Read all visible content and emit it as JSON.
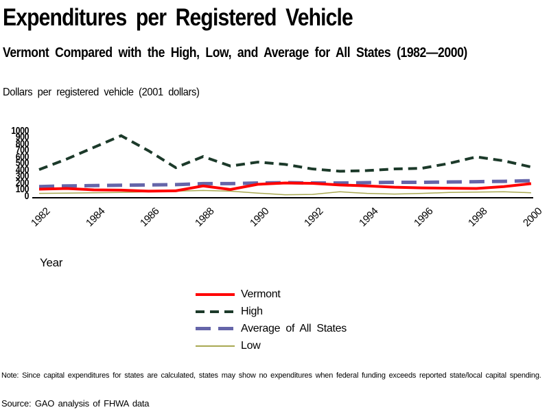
{
  "header": {
    "title": "Expenditures per Registered Vehicle",
    "subtitle": "Vermont Compared with the High, Low, and Average for All States (1982—2000)"
  },
  "footer": {
    "note": "Note: Since capital expenditures for states are calculated, states may show no expenditures when federal funding exceeds reported state/local capital spending.",
    "source": "Source: GAO analysis of FHWA data"
  },
  "colors": {
    "vermont": "#ff0000",
    "high": "#1c3a2a",
    "average": "#6565a9",
    "low": "#a8a851",
    "axis": "#000000"
  },
  "chart_data": {
    "type": "line",
    "title": "Expenditures per Registered Vehicle",
    "xlabel": "Year",
    "ylabel_caption": "Dollars per registered vehicle (2001 dollars)",
    "ylim": [
      0,
      1000
    ],
    "grid": false,
    "legend_position": "bottom-center",
    "x": [
      1982,
      1983,
      1984,
      1985,
      1986,
      1987,
      1988,
      1989,
      1990,
      1991,
      1992,
      1993,
      1994,
      1995,
      1996,
      1997,
      1998,
      1999,
      2000
    ],
    "x_tick_years": [
      1982,
      1984,
      1986,
      1988,
      1990,
      1992,
      1994,
      1996,
      1998,
      2000
    ],
    "y_ticks": [
      0,
      100,
      200,
      300,
      400,
      500,
      600,
      700,
      800,
      900,
      1000
    ],
    "series": [
      {
        "name": "Vermont",
        "color": "#ff0000",
        "style": "solid-thick",
        "values": [
          100,
          110,
          90,
          85,
          70,
          75,
          150,
          95,
          175,
          195,
          190,
          165,
          150,
          130,
          120,
          115,
          110,
          140,
          185
        ]
      },
      {
        "name": "High",
        "color": "#1c3a2a",
        "style": "dashed",
        "values": [
          400,
          560,
          740,
          920,
          690,
          430,
          600,
          455,
          515,
          480,
          410,
          375,
          385,
          410,
          420,
          495,
          595,
          535,
          440
        ]
      },
      {
        "name": "Average of All States",
        "color": "#6565a9",
        "style": "long-dash",
        "values": [
          140,
          150,
          155,
          160,
          165,
          170,
          185,
          185,
          195,
          200,
          195,
          195,
          200,
          205,
          205,
          210,
          215,
          220,
          230
        ]
      },
      {
        "name": "Low",
        "color": "#a8a851",
        "style": "solid-thin",
        "values": [
          35,
          40,
          45,
          50,
          60,
          70,
          80,
          70,
          40,
          15,
          20,
          60,
          35,
          25,
          35,
          50,
          55,
          60,
          45
        ]
      }
    ]
  }
}
